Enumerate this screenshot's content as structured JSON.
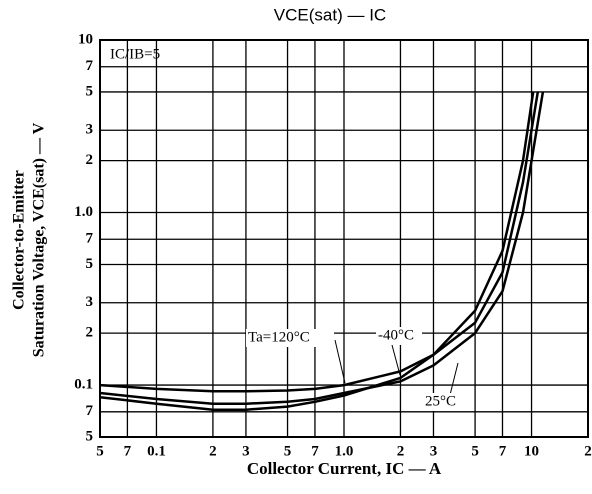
{
  "chart_data": {
    "type": "line",
    "title": "VCE(sat) — IC",
    "x_label": "Collector Current, IC — A",
    "y_label": [
      "Collector-to-Emitter",
      "Saturation Voltage, VCE(sat) — V"
    ],
    "annotations": [
      "IC/IB=5"
    ],
    "log_x": true,
    "log_y": true,
    "grid": true,
    "xlim": [
      0.05,
      20
    ],
    "ylim": [
      0.05,
      10
    ],
    "xticks": [
      {
        "value": 0.05,
        "label": "5"
      },
      {
        "value": 0.07,
        "label": "7"
      },
      0.1,
      {
        "value": 0.2,
        "label": "2"
      },
      {
        "value": 0.3,
        "label": "3"
      },
      {
        "value": 0.5,
        "label": "5"
      },
      {
        "value": 0.7,
        "label": "7"
      },
      {
        "value": 1,
        "label": "1.0"
      },
      {
        "value": 2,
        "label": "2"
      },
      {
        "value": 3,
        "label": "3"
      },
      {
        "value": 5,
        "label": "5"
      },
      {
        "value": 7,
        "label": "7"
      },
      10,
      {
        "value": 20,
        "label": "2"
      }
    ],
    "yticks": [
      {
        "value": 0.05,
        "label": "5"
      },
      {
        "value": 0.07,
        "label": "7"
      },
      0.1,
      {
        "value": 0.2,
        "label": "2"
      },
      {
        "value": 0.3,
        "label": "3"
      },
      {
        "value": 0.5,
        "label": "5"
      },
      {
        "value": 0.7,
        "label": "7"
      },
      {
        "value": 1,
        "label": "1.0"
      },
      {
        "value": 2,
        "label": "2"
      },
      {
        "value": 3,
        "label": "3"
      },
      {
        "value": 5,
        "label": "5"
      },
      {
        "value": 7,
        "label": "7"
      },
      10
    ],
    "series": [
      {
        "name": "Ta=120°C",
        "color": "#000000",
        "x": [
          0.05,
          0.1,
          0.2,
          0.3,
          0.5,
          0.7,
          1,
          2,
          3,
          5,
          7,
          9,
          10.2
        ],
        "values": [
          0.085,
          0.078,
          0.072,
          0.072,
          0.075,
          0.08,
          0.087,
          0.11,
          0.15,
          0.27,
          0.6,
          2,
          5
        ]
      },
      {
        "name": "-40°C",
        "color": "#000000",
        "x": [
          0.05,
          0.1,
          0.2,
          0.3,
          0.5,
          0.7,
          1,
          2,
          3,
          5,
          7,
          9,
          10.8
        ],
        "values": [
          0.1,
          0.095,
          0.092,
          0.092,
          0.093,
          0.095,
          0.1,
          0.12,
          0.15,
          0.23,
          0.45,
          1.5,
          5
        ]
      },
      {
        "name": "25°C",
        "color": "#000000",
        "x": [
          0.05,
          0.1,
          0.2,
          0.3,
          0.5,
          0.7,
          1,
          2,
          3,
          5,
          7,
          9,
          11.5
        ],
        "values": [
          0.09,
          0.083,
          0.078,
          0.078,
          0.08,
          0.083,
          0.09,
          0.105,
          0.13,
          0.2,
          0.35,
          1.0,
          5
        ]
      }
    ]
  }
}
